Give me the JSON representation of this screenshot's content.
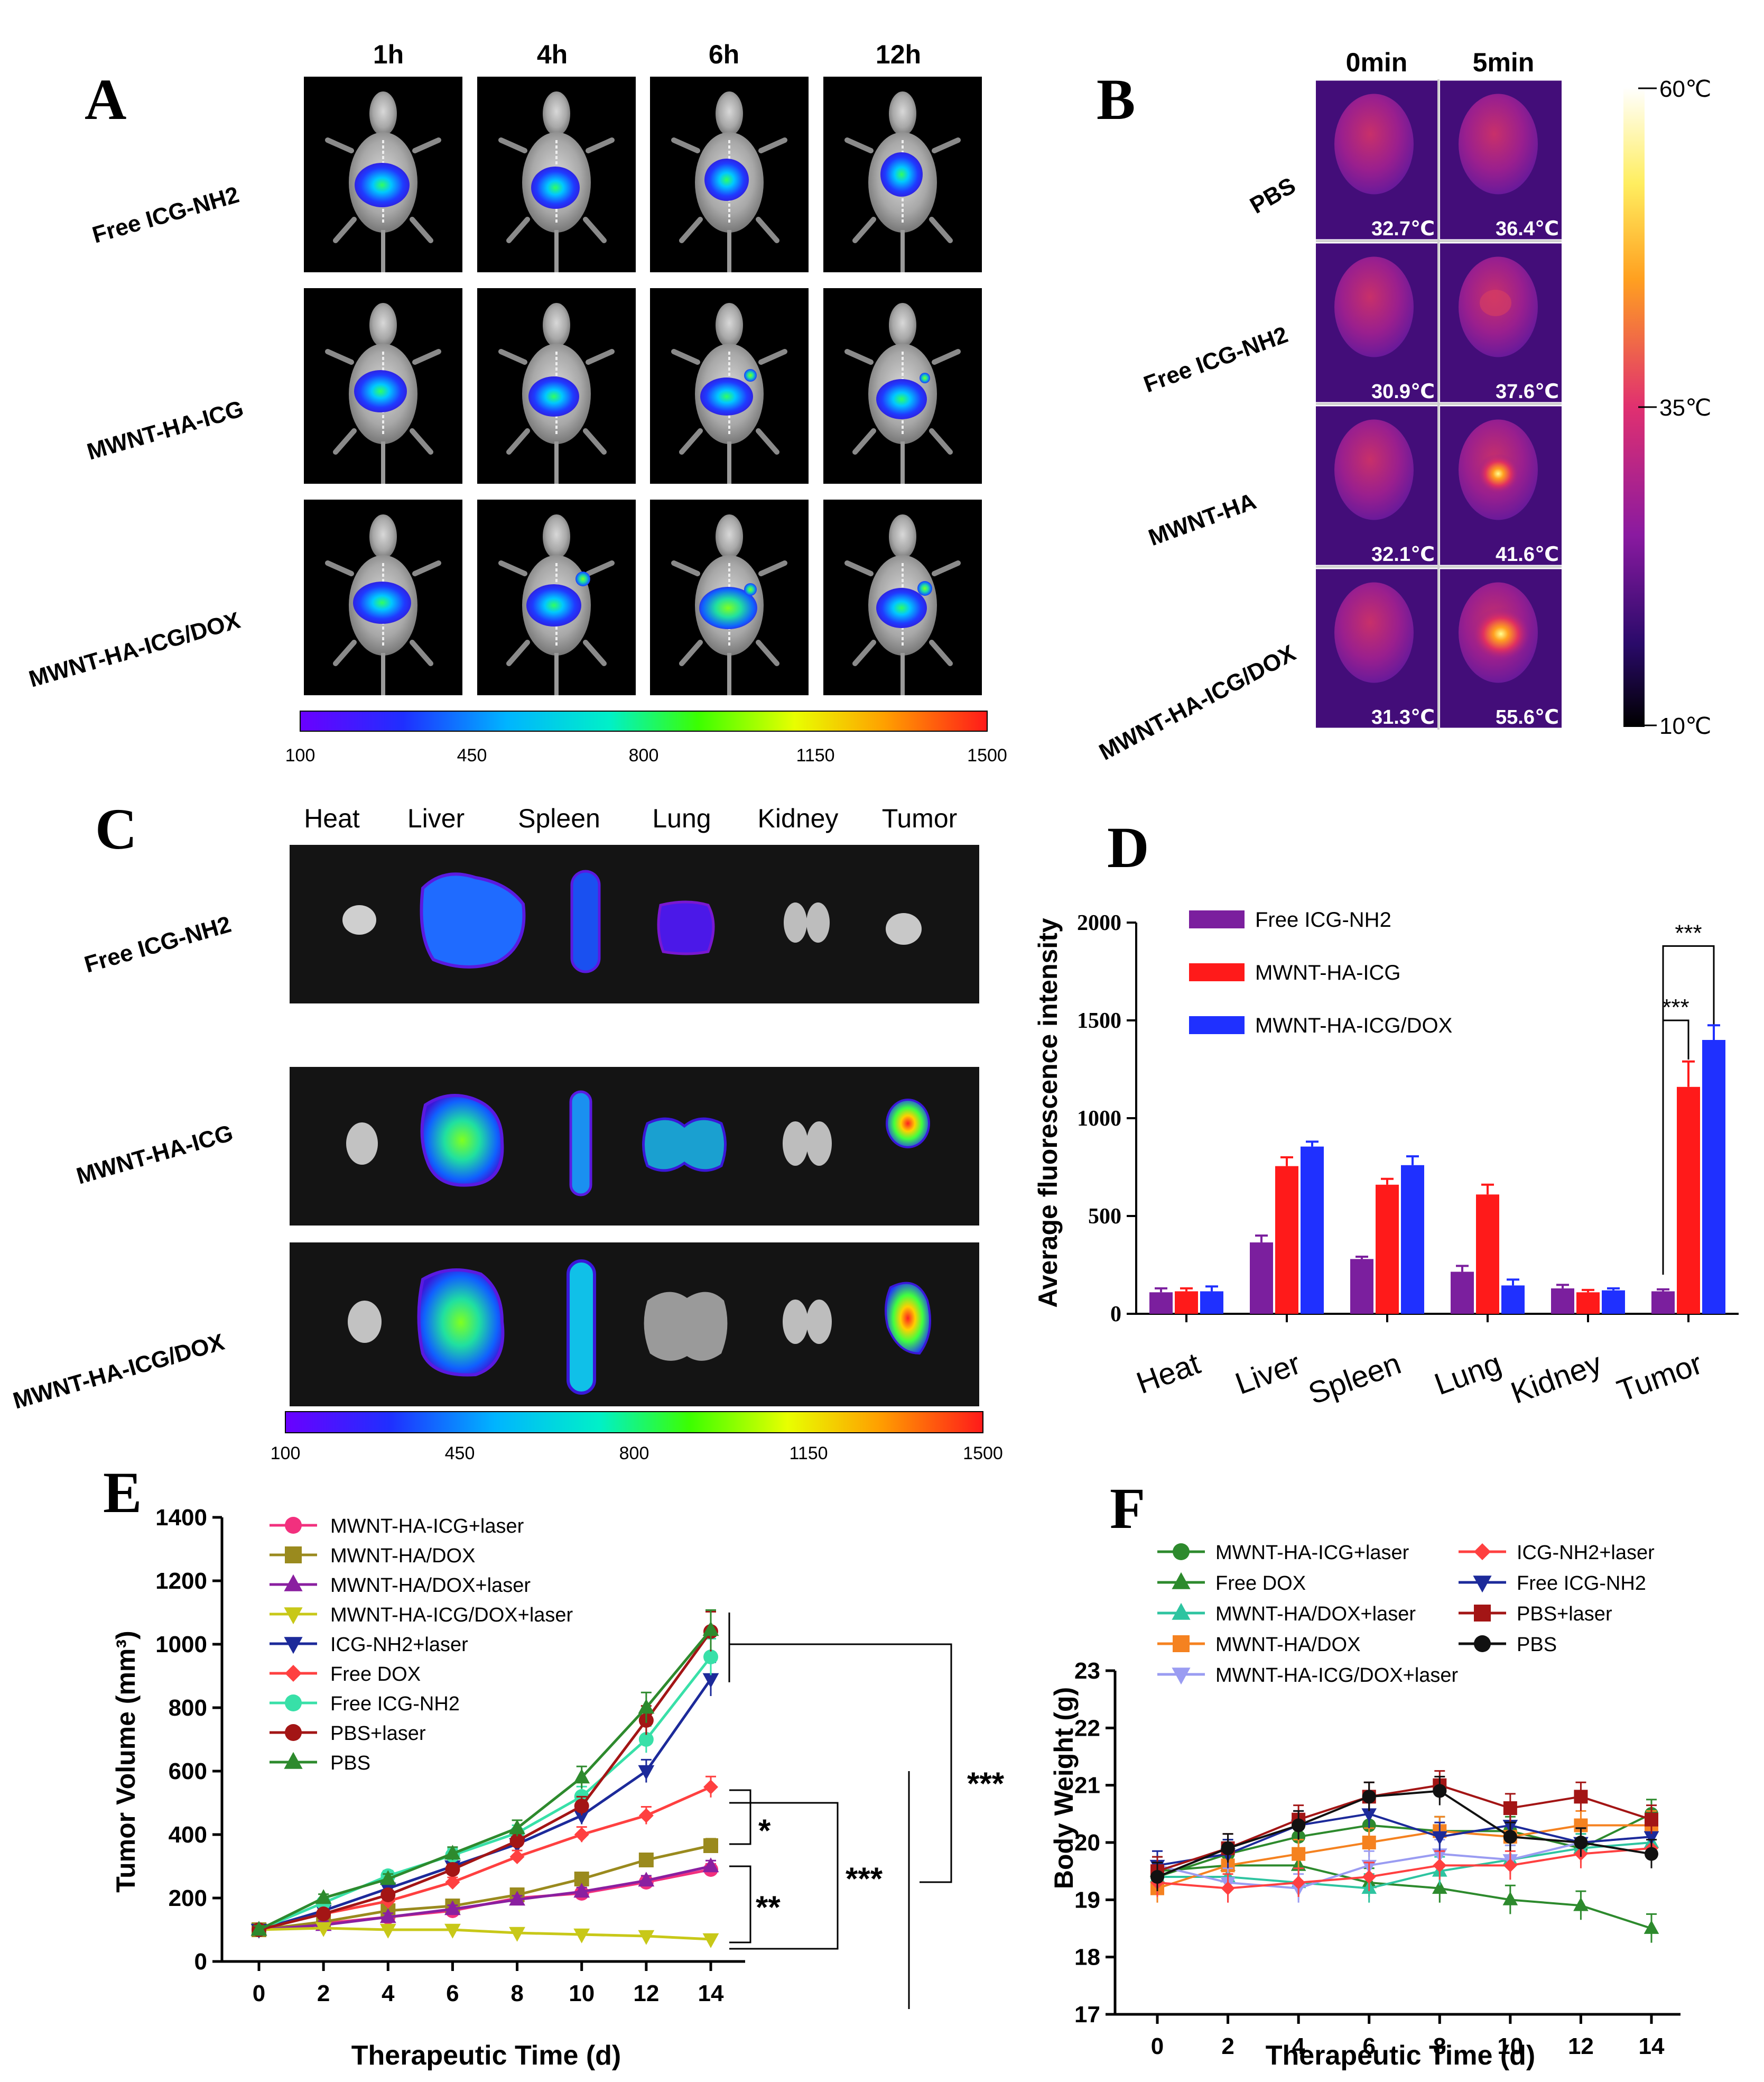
{
  "panels": {
    "A": "A",
    "B": "B",
    "C": "C",
    "D": "D",
    "E": "E",
    "F": "F"
  },
  "colors": {
    "purple": "#7b1f9e",
    "red": "#ff1a1a",
    "blue": "#1f30ff",
    "pink": "#f2307e",
    "olive": "#9a8a1e",
    "violet": "#8a1fa0",
    "yellow": "#c8c818",
    "navy": "#1c2a9a",
    "lightred": "#ff4040",
    "cyan": "#38e0a8",
    "darkred": "#a31515",
    "green": "#2d8a2d",
    "black": "#111111",
    "teal": "#2ec4a0",
    "orange": "#f58220",
    "lavender": "#9a9cf2"
  },
  "panelA": {
    "timepoints": [
      "1h",
      "4h",
      "6h",
      "12h"
    ],
    "rows": [
      "Free ICG-NH2",
      "MWNT-HA-ICG",
      "MWNT-HA-ICG/DOX"
    ],
    "scale": [
      "100",
      "450",
      "800",
      "1150",
      "1500"
    ]
  },
  "panelB": {
    "timepoints": [
      "0min",
      "5min"
    ],
    "rows": [
      {
        "label": "PBS",
        "t0": "32.7℃",
        "t5": "36.4℃"
      },
      {
        "label": "Free ICG-NH2",
        "t0": "30.9℃",
        "t5": "37.6℃"
      },
      {
        "label": "MWNT-HA",
        "t0": "32.1℃",
        "t5": "41.6℃"
      },
      {
        "label": "MWNT-HA-ICG/DOX",
        "t0": "31.3℃",
        "t5": "55.6℃"
      }
    ],
    "scale": [
      "60℃",
      "35℃",
      "10℃"
    ]
  },
  "panelC": {
    "organs": [
      "Heat",
      "Liver",
      "Spleen",
      "Lung",
      "Kidney",
      "Tumor"
    ],
    "rows": [
      "Free ICG-NH2",
      "MWNT-HA-ICG",
      "MWNT-HA-ICG/DOX"
    ],
    "scale": [
      "100",
      "450",
      "800",
      "1150",
      "1500"
    ]
  },
  "chart_data": [
    {
      "panel": "D",
      "type": "bar",
      "ylabel": "Average fluorescence intensity",
      "ylim": [
        0,
        2000
      ],
      "yticks": [
        "0",
        "500",
        "1000",
        "1500",
        "2000"
      ],
      "categories": [
        "Heat",
        "Liver",
        "Spleen",
        "Lung",
        "Kidney",
        "Tumor"
      ],
      "series": [
        {
          "name": "Free ICG-NH2",
          "values": [
            110,
            365,
            280,
            215,
            130,
            115
          ],
          "errors": [
            20,
            35,
            12,
            30,
            18,
            10
          ]
        },
        {
          "name": "MWNT-HA-ICG",
          "values": [
            115,
            755,
            660,
            610,
            110,
            1160
          ],
          "errors": [
            15,
            45,
            30,
            50,
            12,
            130
          ]
        },
        {
          "name": "MWNT-HA-ICG/DOX",
          "values": [
            115,
            855,
            760,
            145,
            120,
            1400
          ],
          "errors": [
            25,
            25,
            45,
            30,
            10,
            75
          ]
        }
      ],
      "significance": [
        "***",
        "***"
      ]
    },
    {
      "panel": "E",
      "type": "line",
      "xlabel": "Therapeutic Time (d)",
      "ylabel": "Tumor Volume (mm³)",
      "xlim": [
        0,
        14
      ],
      "ylim": [
        0,
        1400
      ],
      "xticks": [
        "0",
        "2",
        "4",
        "6",
        "8",
        "10",
        "12",
        "14"
      ],
      "yticks": [
        "0",
        "200",
        "400",
        "600",
        "800",
        "1000",
        "1200",
        "1400"
      ],
      "x": [
        0,
        2,
        4,
        6,
        8,
        10,
        12,
        14
      ],
      "series": [
        {
          "name": "MWNT-HA-ICG+laser",
          "values": [
            100,
            120,
            140,
            160,
            200,
            215,
            250,
            290
          ]
        },
        {
          "name": "MWNT-HA/DOX",
          "values": [
            100,
            125,
            160,
            175,
            210,
            260,
            320,
            365
          ]
        },
        {
          "name": "MWNT-HA/DOX+laser",
          "values": [
            100,
            115,
            140,
            165,
            195,
            220,
            255,
            300
          ]
        },
        {
          "name": "MWNT-HA-ICG/DOX+laser",
          "values": [
            100,
            105,
            100,
            100,
            90,
            85,
            80,
            70
          ]
        },
        {
          "name": "ICG-NH2+laser",
          "values": [
            100,
            160,
            230,
            300,
            370,
            460,
            600,
            890
          ]
        },
        {
          "name": "Free DOX",
          "values": [
            100,
            150,
            190,
            250,
            330,
            400,
            460,
            550
          ]
        },
        {
          "name": "Free ICG-NH2",
          "values": [
            100,
            185,
            270,
            335,
            405,
            520,
            700,
            960
          ]
        },
        {
          "name": "PBS+laser",
          "values": [
            100,
            150,
            210,
            290,
            380,
            490,
            760,
            1040
          ]
        },
        {
          "name": "PBS",
          "values": [
            100,
            200,
            260,
            340,
            420,
            580,
            800,
            1045
          ]
        }
      ],
      "significance": [
        "*",
        "**",
        "***",
        "***"
      ]
    },
    {
      "panel": "F",
      "type": "line",
      "xlabel": "Therapeutic Time (d)",
      "ylabel": "Body Weight (g)",
      "xlim": [
        0,
        14
      ],
      "ylim": [
        17,
        23
      ],
      "xticks": [
        "0",
        "2",
        "4",
        "6",
        "8",
        "10",
        "12",
        "14"
      ],
      "yticks": [
        "17",
        "18",
        "19",
        "20",
        "21",
        "22",
        "23"
      ],
      "x": [
        0,
        2,
        4,
        6,
        8,
        10,
        12,
        14
      ],
      "series": [
        {
          "name": "MWNT-HA-ICG+laser",
          "values": [
            19.4,
            19.8,
            20.1,
            20.3,
            20.2,
            20.2,
            19.9,
            20.5
          ]
        },
        {
          "name": "Free DOX",
          "values": [
            19.5,
            19.6,
            19.6,
            19.3,
            19.2,
            19.0,
            18.9,
            18.5
          ]
        },
        {
          "name": "MWNT-HA/DOX+laser",
          "values": [
            19.4,
            19.4,
            19.3,
            19.2,
            19.5,
            19.7,
            19.9,
            20.0
          ]
        },
        {
          "name": "MWNT-HA/DOX",
          "values": [
            19.2,
            19.6,
            19.8,
            20.0,
            20.2,
            20.1,
            20.3,
            20.3
          ]
        },
        {
          "name": "MWNT-HA-ICG/DOX+laser",
          "values": [
            19.6,
            19.3,
            19.2,
            19.6,
            19.8,
            19.7,
            20.0,
            20.1
          ]
        },
        {
          "name": "ICG-NH2+laser",
          "values": [
            19.3,
            19.2,
            19.3,
            19.4,
            19.6,
            19.6,
            19.8,
            19.9
          ]
        },
        {
          "name": "Free ICG-NH2",
          "values": [
            19.6,
            19.8,
            20.3,
            20.5,
            20.1,
            20.3,
            20.0,
            20.1
          ]
        },
        {
          "name": "PBS+laser",
          "values": [
            19.5,
            19.9,
            20.4,
            20.8,
            21.0,
            20.6,
            20.8,
            20.4
          ]
        },
        {
          "name": "PBS",
          "values": [
            19.4,
            19.9,
            20.3,
            20.8,
            20.9,
            20.1,
            20.0,
            19.8
          ]
        }
      ]
    }
  ]
}
